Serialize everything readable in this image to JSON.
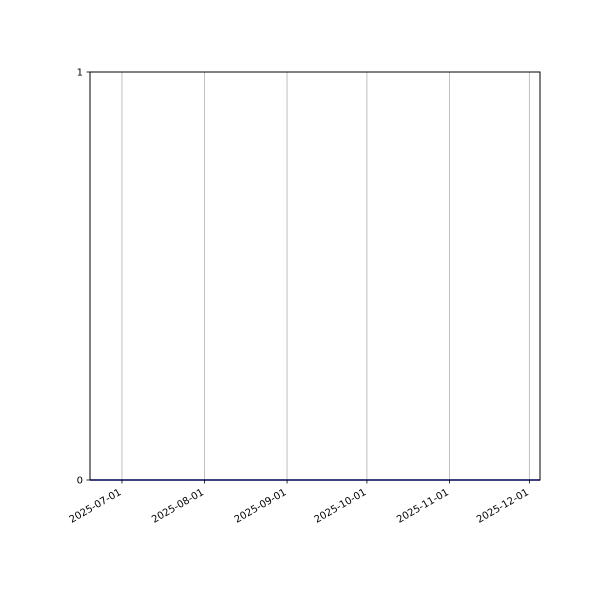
{
  "chart_data": {
    "type": "line",
    "title": "",
    "xlabel": "",
    "ylabel": "",
    "x_axis_type": "date",
    "xlim": [
      "2025-06-19",
      "2025-12-05"
    ],
    "ylim": [
      0,
      1
    ],
    "x_ticks": [
      "2025-07-01",
      "2025-08-01",
      "2025-09-01",
      "2025-10-01",
      "2025-11-01",
      "2025-12-01"
    ],
    "y_ticks": [
      0,
      1
    ],
    "grid": {
      "x": true,
      "y": false
    },
    "series": [
      {
        "color": "#0000ff",
        "x": [
          "2025-06-19",
          "2025-12-05"
        ],
        "y": [
          0,
          0
        ]
      }
    ]
  }
}
